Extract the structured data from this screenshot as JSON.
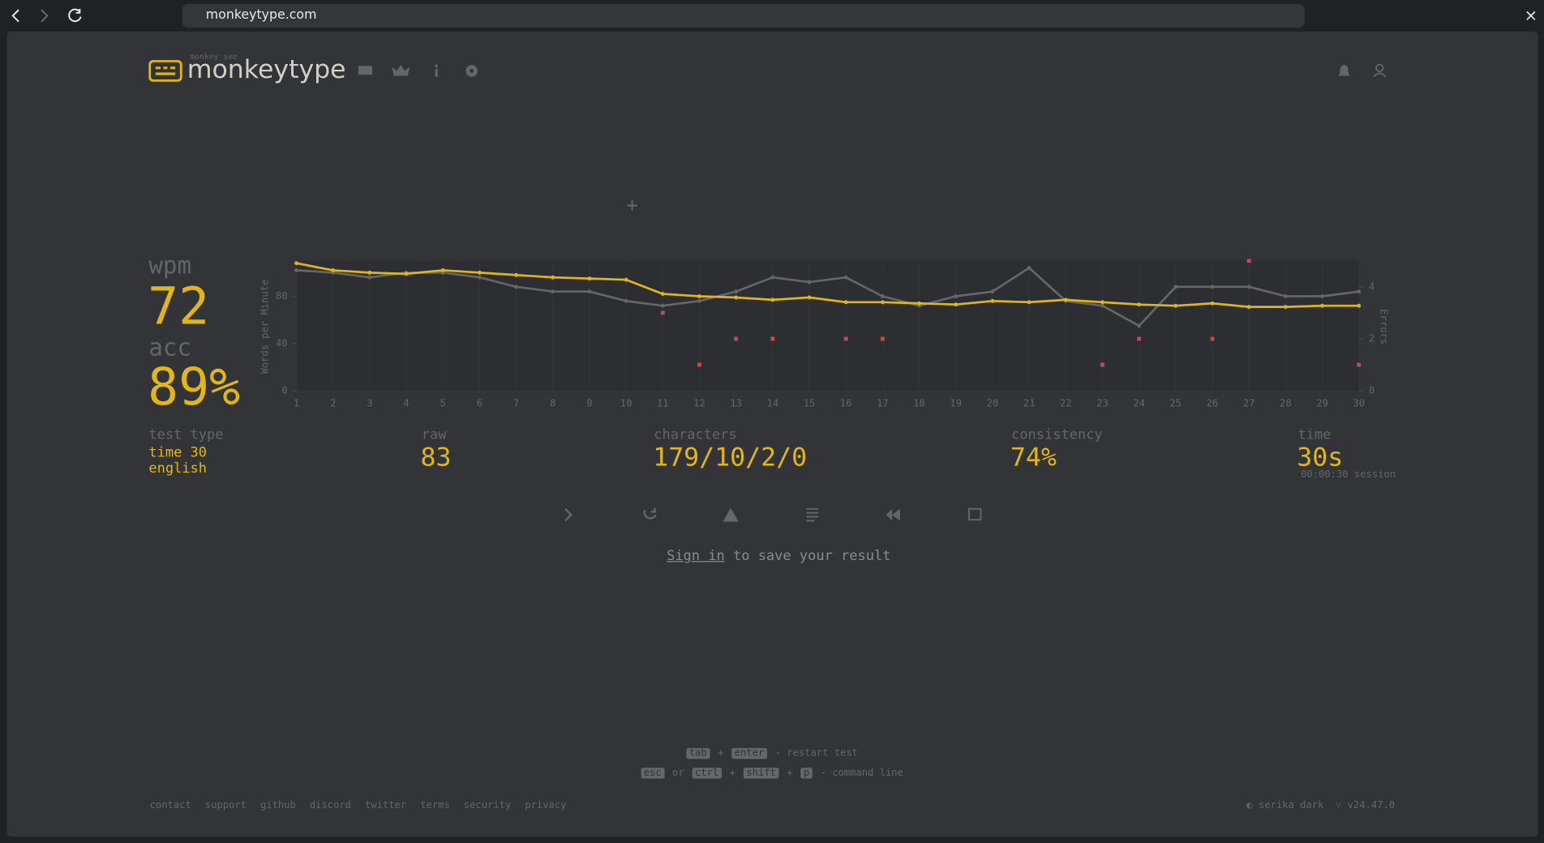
{
  "browser": {
    "url": "monkeytype.com"
  },
  "header": {
    "logo_sub": "monkey see",
    "logo": "monkeytype"
  },
  "results": {
    "wpm_label": "wpm",
    "wpm": "72",
    "acc_label": "acc",
    "acc": "89%",
    "test_type_label": "test type",
    "test_type": [
      "time 30",
      "english"
    ],
    "raw_label": "raw",
    "raw": "83",
    "characters_label": "characters",
    "characters": "179/10/2/0",
    "consistency_label": "consistency",
    "consistency": "74%",
    "time_label": "time",
    "time": "30s",
    "session": "00:00:30 session"
  },
  "chart_data": {
    "type": "line",
    "x": [
      1,
      2,
      3,
      4,
      5,
      6,
      7,
      8,
      9,
      10,
      11,
      12,
      13,
      14,
      15,
      16,
      17,
      18,
      19,
      20,
      21,
      22,
      23,
      24,
      25,
      26,
      27,
      28,
      29,
      30
    ],
    "ylabel": "Words per Minute",
    "y2label": "Errors",
    "ylim": [
      0,
      110
    ],
    "yticks": [
      0,
      40,
      80
    ],
    "y2lim": [
      0,
      5
    ],
    "y2ticks": [
      0,
      2,
      4
    ],
    "series": [
      {
        "name": "raw",
        "color": "#646669",
        "values": [
          102,
          100,
          96,
          100,
          100,
          96,
          88,
          84,
          84,
          76,
          72,
          76,
          84,
          96,
          92,
          96,
          80,
          72,
          80,
          84,
          104,
          76,
          72,
          55,
          88,
          88,
          88,
          80,
          80,
          84
        ]
      },
      {
        "name": "wpm",
        "color": "#e2b714",
        "values": [
          108,
          102,
          100,
          99,
          102,
          100,
          98,
          96,
          95,
          94,
          82,
          80,
          79,
          77,
          79,
          75,
          75,
          74,
          73,
          76,
          75,
          77,
          75,
          73,
          72,
          74,
          71,
          71,
          72,
          72
        ]
      },
      {
        "name": "errors",
        "color": "#ca4754",
        "axis": "y2",
        "values": [
          null,
          null,
          null,
          null,
          null,
          null,
          null,
          null,
          null,
          null,
          3,
          1,
          2,
          2,
          null,
          2,
          2,
          null,
          null,
          null,
          null,
          null,
          1,
          2,
          null,
          2,
          5,
          null,
          null,
          1
        ]
      }
    ]
  },
  "sign_in": {
    "link": "Sign in",
    "text": "to save your result"
  },
  "shortcuts": {
    "line1": [
      "tab",
      "+",
      "enter",
      "- restart test"
    ],
    "line2": [
      "esc",
      "or",
      "ctrl",
      "+",
      "shift",
      "+",
      "p",
      "- command line"
    ]
  },
  "footer": {
    "links": [
      "contact",
      "support",
      "github",
      "discord",
      "twitter",
      "terms",
      "security",
      "privacy"
    ],
    "theme": "serika dark",
    "version": "v24.47.0"
  }
}
